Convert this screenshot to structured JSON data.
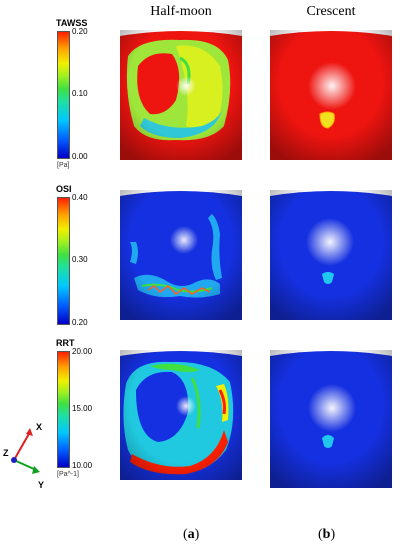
{
  "columns": {
    "left": "Half-moon",
    "right": "Crescent"
  },
  "rows": [
    {
      "metric": "TAWSS",
      "ticks": [
        "0.20",
        "0.10",
        "0.00"
      ],
      "unit": "[Pa]"
    },
    {
      "metric": "OSI",
      "ticks": [
        "0.40",
        "0.30",
        "0.20"
      ],
      "unit": ""
    },
    {
      "metric": "RRT",
      "ticks": [
        "20.00",
        "15.00",
        "10.00"
      ],
      "unit": "[Pa^-1]"
    }
  ],
  "subfigure_labels": {
    "a": "a",
    "b": "b"
  },
  "axes_triad": {
    "x": "X",
    "y": "Y",
    "z": "Z",
    "colors": {
      "x": "#e02020",
      "y": "#10a020",
      "z": "#2020c0"
    }
  },
  "colormap": [
    "#0000c8",
    "#00c8ff",
    "#3fe040",
    "#f0f000",
    "#ff2000"
  ]
}
